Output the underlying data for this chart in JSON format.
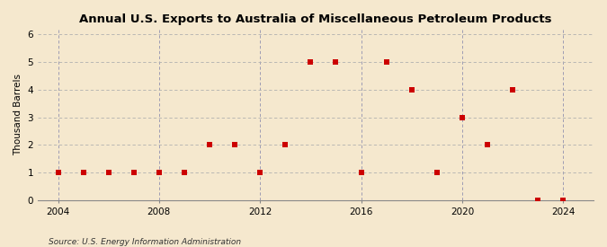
{
  "title": "Annual U.S. Exports to Australia of Miscellaneous Petroleum Products",
  "ylabel": "Thousand Barrels",
  "source": "Source: U.S. Energy Information Administration",
  "background_color": "#f5e8ce",
  "years": [
    2004,
    2005,
    2006,
    2007,
    2008,
    2009,
    2010,
    2011,
    2012,
    2013,
    2014,
    2015,
    2016,
    2017,
    2018,
    2019,
    2020,
    2021,
    2022,
    2023,
    2024
  ],
  "values": [
    1,
    1,
    1,
    1,
    1,
    1,
    2,
    2,
    1,
    2,
    5,
    5,
    1,
    5,
    4,
    1,
    3,
    2,
    4,
    0,
    0
  ],
  "marker_color": "#cc0000",
  "marker_size": 25,
  "xlim": [
    2003.2,
    2025.2
  ],
  "ylim": [
    0,
    6.2
  ],
  "xticks": [
    2004,
    2008,
    2012,
    2016,
    2020,
    2024
  ],
  "yticks": [
    0,
    1,
    2,
    3,
    4,
    5,
    6
  ],
  "grid_color_h": "#b0b0b0",
  "grid_color_v": "#9090b0",
  "title_fontsize": 9.5,
  "label_fontsize": 7.5,
  "tick_fontsize": 7.5,
  "source_fontsize": 6.5
}
